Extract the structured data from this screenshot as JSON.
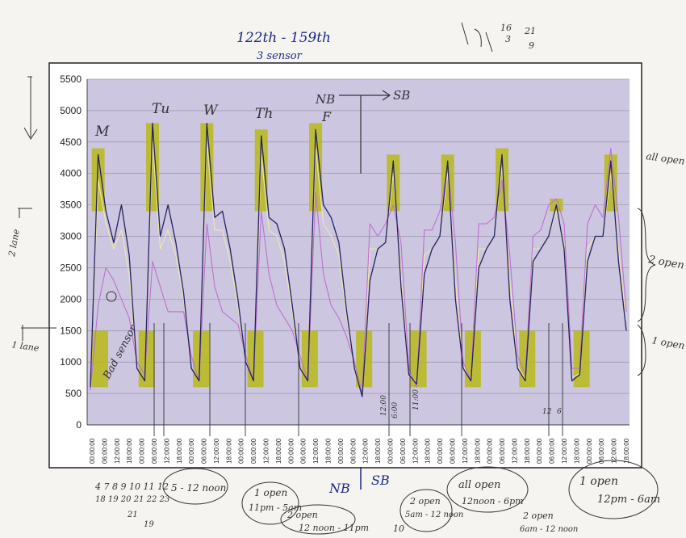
{
  "annotations": {
    "top_title_1": "122th - 159th",
    "top_title_2": "3 sensor",
    "top_right_1": "16",
    "top_right_2": "3",
    "top_right_3": "21",
    "top_right_4": "9",
    "day_m": "M",
    "day_tu": "Tu",
    "day_w": "W",
    "day_th": "Th",
    "day_f": "F",
    "nb": "NB",
    "sb": "SB",
    "bad_sensor": "Bad sensor",
    "all_open_right": "all open",
    "two_open_right": "2 open",
    "one_open_right": "1 open",
    "two_lane_left": "2 lane",
    "one_lane_left": "1 lane",
    "bottom_nb": "NB",
    "bottom_sb": "SB",
    "oval_1": "5 - 12 noon",
    "oval_2a": "1 open",
    "oval_2b": "11pm - 5am",
    "oval_3a": "2 open",
    "oval_3b": "12 noon - 11pm",
    "oval_4a": "2 open",
    "oval_4b": "5am - 12 noon",
    "oval_5a": "all open",
    "oval_5b": "12noon - 6pm",
    "oval_6a": "2 open",
    "oval_6b": "6am - 12 noon",
    "oval_7a": "1 open",
    "oval_7b": "12pm - 6am",
    "dates_1": "4 7 8 9 10 11 12",
    "dates_2": "18 19 20 21 22 23",
    "dates_3": "21",
    "dates_4": "19",
    "note_10": "10",
    "mark_1200": "12:00",
    "mark_600": "6:00",
    "mark_1100": "11:00",
    "mark_12": "12",
    "mark_6": "6"
  },
  "chart_data": {
    "type": "line",
    "ylim": [
      0,
      5500
    ],
    "yticks": [
      0,
      500,
      1000,
      1500,
      2000,
      2500,
      3000,
      3500,
      4000,
      4500,
      5000,
      5500
    ],
    "x_tick_labels": [
      "00:00:00",
      "06:00:00",
      "12:00:00",
      "18:00:00",
      "00:00:00",
      "06:00:00",
      "12:00:00",
      "18:00:00",
      "00:00:00",
      "06:00:00",
      "12:00:00",
      "18:00:00",
      "00:00:00",
      "06:00:00",
      "12:00:00",
      "18:00:00",
      "00:00:00",
      "06:00:00",
      "12:00:00",
      "18:00:00",
      "00:00:00",
      "06:00:00",
      "12:00:00",
      "18:00:00",
      "00:00:00",
      "06:00:00",
      "12:00:00",
      "18:00:00",
      "00:00:00",
      "06:00:00",
      "12:00:00",
      "18:00:00",
      "00:00:00",
      "06:00:00",
      "12:00:00",
      "18:00:00",
      "00:00:00",
      "06:00:00",
      "12:00:00",
      "18:00:00",
      "00:00:00",
      "06:00:00",
      "12:00:00",
      "18:00:00"
    ],
    "grid": true,
    "colors": {
      "series1": "#23235e",
      "series2": "#c070d0",
      "series3": "#f0e8a8",
      "highlight": "#b8b818",
      "plot_bg": "#ccc6e0"
    },
    "series": [
      {
        "values": [
          600,
          4300,
          3400,
          2900,
          3500,
          2700,
          900,
          700,
          4800,
          3000,
          3500,
          2900,
          2100,
          900,
          700,
          4800,
          3300,
          3400,
          2800,
          2000,
          1000,
          700,
          4600,
          3300,
          3200,
          2800,
          1900,
          900,
          700,
          4700,
          3500,
          3300,
          2900,
          1800,
          900,
          450,
          2300,
          2800,
          2900,
          4200,
          2200,
          800,
          650,
          2400,
          2800,
          3000,
          4200,
          2000,
          900,
          700,
          2500,
          2800,
          3000,
          4300,
          2000,
          900,
          700,
          2600,
          2800,
          3000,
          3500,
          2800,
          700,
          800,
          2600,
          3000,
          3000,
          4200,
          2600,
          1500
        ]
      },
      {
        "values": [
          550,
          1900,
          2500,
          2300,
          2000,
          1700,
          1000,
          800,
          2600,
          2200,
          1800,
          1800,
          1800,
          1100,
          700,
          3200,
          2200,
          1800,
          1700,
          1600,
          1100,
          700,
          3400,
          2400,
          1900,
          1700,
          1500,
          1100,
          700,
          3700,
          2400,
          1900,
          1700,
          1400,
          1000,
          500,
          3200,
          3000,
          3200,
          3500,
          2900,
          900,
          600,
          3100,
          3100,
          3400,
          4100,
          2900,
          1000,
          700,
          3200,
          3200,
          3300,
          3900,
          2700,
          1100,
          800,
          3000,
          3100,
          3500,
          3600,
          3200,
          900,
          900,
          3200,
          3500,
          3300,
          4400,
          3300,
          1800
        ]
      },
      {
        "values": [
          580,
          3900,
          3200,
          2800,
          3100,
          2400,
          900,
          700,
          4500,
          2800,
          3100,
          2700,
          2000,
          900,
          700,
          4500,
          3100,
          3100,
          2600,
          1900,
          1000,
          700,
          4300,
          3100,
          3000,
          2600,
          1800,
          900,
          700,
          4400,
          3200,
          3000,
          2700,
          1700,
          900,
          480,
          2800,
          2800,
          2900,
          4000,
          2400,
          850,
          650,
          2700,
          2800,
          3000,
          4000,
          2300,
          950,
          720,
          2800,
          2800,
          3000,
          4100,
          2300,
          950,
          720,
          2800,
          2800,
          3000,
          3400,
          2900,
          750,
          820,
          2800,
          3000,
          3000,
          4000,
          2800,
          1650
        ]
      }
    ]
  }
}
